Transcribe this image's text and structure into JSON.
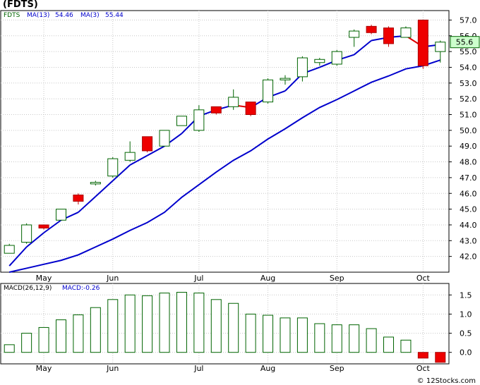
{
  "title": "(FDTS)",
  "credit": "© 12Stocks.com",
  "chart_data": [
    {
      "type": "candlestick",
      "symbol": "FDTS",
      "legend": [
        {
          "label": "FDTS",
          "color": "#006400"
        },
        {
          "label": "MA(13)",
          "value": "54.46",
          "color": "#0000cc"
        },
        {
          "label": "MA(3)",
          "value": "55.44",
          "color": "#0000cc"
        }
      ],
      "last_price_label": "55.6",
      "ylim": [
        41,
        57.6
      ],
      "yticks": [
        "42.0",
        "43.0",
        "44.0",
        "45.0",
        "46.0",
        "47.0",
        "48.0",
        "49.0",
        "50.0",
        "51.0",
        "52.0",
        "53.0",
        "54.0",
        "55.0",
        "56.0",
        "57.0"
      ],
      "xticks": [
        {
          "label": "May",
          "index": 2
        },
        {
          "label": "Jun",
          "index": 6
        },
        {
          "label": "Jul",
          "index": 11
        },
        {
          "label": "Aug",
          "index": 15
        },
        {
          "label": "Sep",
          "index": 19
        },
        {
          "label": "Oct",
          "index": 24
        }
      ],
      "grid": true,
      "candles": [
        {
          "o": 42.2,
          "h": 42.8,
          "l": 42.2,
          "c": 42.7
        },
        {
          "o": 42.9,
          "h": 44.1,
          "l": 42.8,
          "c": 44.0
        },
        {
          "o": 44.0,
          "h": 44.0,
          "l": 43.7,
          "c": 43.8
        },
        {
          "o": 44.3,
          "h": 45.0,
          "l": 44.3,
          "c": 45.0
        },
        {
          "o": 45.9,
          "h": 46.0,
          "l": 45.3,
          "c": 45.5
        },
        {
          "o": 46.6,
          "h": 46.8,
          "l": 46.5,
          "c": 46.7
        },
        {
          "o": 47.1,
          "h": 48.3,
          "l": 47.0,
          "c": 48.2
        },
        {
          "o": 48.1,
          "h": 49.3,
          "l": 48.0,
          "c": 48.6
        },
        {
          "o": 49.6,
          "h": 49.6,
          "l": 48.6,
          "c": 48.7
        },
        {
          "o": 49.0,
          "h": 50.0,
          "l": 49.0,
          "c": 50.0
        },
        {
          "o": 50.3,
          "h": 50.9,
          "l": 50.3,
          "c": 50.9
        },
        {
          "o": 50.0,
          "h": 51.6,
          "l": 49.9,
          "c": 51.3
        },
        {
          "o": 51.5,
          "h": 51.5,
          "l": 51.0,
          "c": 51.1
        },
        {
          "o": 51.5,
          "h": 52.6,
          "l": 51.3,
          "c": 52.1
        },
        {
          "o": 51.8,
          "h": 51.8,
          "l": 50.9,
          "c": 51.0
        },
        {
          "o": 51.8,
          "h": 53.3,
          "l": 51.7,
          "c": 53.2
        },
        {
          "o": 53.2,
          "h": 53.5,
          "l": 52.9,
          "c": 53.3
        },
        {
          "o": 53.4,
          "h": 54.7,
          "l": 53.1,
          "c": 54.6
        },
        {
          "o": 54.3,
          "h": 54.6,
          "l": 54.1,
          "c": 54.5
        },
        {
          "o": 54.2,
          "h": 55.1,
          "l": 54.1,
          "c": 55.0
        },
        {
          "o": 55.9,
          "h": 56.4,
          "l": 55.3,
          "c": 56.3
        },
        {
          "o": 56.6,
          "h": 56.7,
          "l": 56.1,
          "c": 56.2
        },
        {
          "o": 56.5,
          "h": 56.6,
          "l": 55.3,
          "c": 55.5
        },
        {
          "o": 55.9,
          "h": 56.6,
          "l": 55.9,
          "c": 56.5
        },
        {
          "o": 57.0,
          "h": 57.0,
          "l": 53.9,
          "c": 54.1
        },
        {
          "o": 55.0,
          "h": 55.7,
          "l": 54.3,
          "c": 55.6
        }
      ],
      "ma13": [
        41.0,
        41.25,
        41.5,
        41.75,
        42.1,
        42.6,
        43.1,
        43.65,
        44.15,
        44.8,
        45.75,
        46.55,
        47.35,
        48.1,
        48.7,
        49.45,
        50.1,
        50.8,
        51.45,
        51.95,
        52.5,
        53.05,
        53.45,
        53.9,
        54.1,
        54.46
      ],
      "ma3": [
        41.4,
        42.6,
        43.5,
        44.3,
        44.8,
        45.8,
        46.8,
        47.8,
        48.4,
        49.0,
        49.8,
        50.9,
        51.3,
        51.6,
        51.45,
        52.1,
        52.5,
        53.6,
        54.0,
        54.45,
        54.8,
        55.7,
        55.9,
        56.0,
        55.3,
        55.44
      ],
      "ma3_trend_colors": [
        "blue",
        "blue",
        "blue",
        "blue",
        "blue",
        "blue",
        "blue",
        "blue",
        "blue",
        "blue",
        "blue",
        "blue",
        "blue",
        "red",
        "blue",
        "blue",
        "blue",
        "blue",
        "blue",
        "blue",
        "blue",
        "blue",
        "blue",
        "red",
        "blue"
      ]
    },
    {
      "type": "bar",
      "title": "MACD(26,12,9)",
      "value_label": "MACD:-0.26",
      "ylim": [
        -0.3,
        1.8
      ],
      "yticks": [
        "1.5",
        "1.0",
        "0.5",
        "0.0"
      ],
      "xticks": [
        {
          "label": "May",
          "index": 2
        },
        {
          "label": "Jun",
          "index": 6
        },
        {
          "label": "Jul",
          "index": 11
        },
        {
          "label": "Aug",
          "index": 15
        },
        {
          "label": "Sep",
          "index": 19
        },
        {
          "label": "Oct",
          "index": 24
        }
      ],
      "grid": true,
      "values": [
        0.2,
        0.5,
        0.65,
        0.85,
        0.98,
        1.17,
        1.38,
        1.5,
        1.48,
        1.55,
        1.57,
        1.55,
        1.38,
        1.28,
        1.0,
        0.97,
        0.9,
        0.9,
        0.75,
        0.72,
        0.72,
        0.62,
        0.4,
        0.32,
        -0.15,
        -0.26
      ]
    }
  ]
}
